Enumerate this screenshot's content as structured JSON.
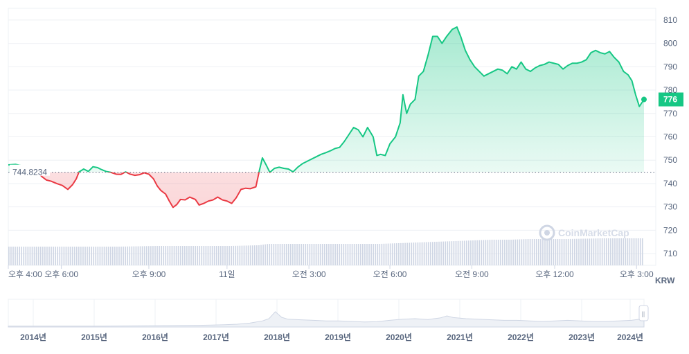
{
  "chart_data": {
    "type": "line",
    "baseline_value": 744.8234,
    "baseline_label": "744.8234",
    "last_value": 776,
    "last_label": "776",
    "unit_label": "KRW",
    "ylim": [
      705,
      815
    ],
    "y_ticks": [
      710,
      720,
      730,
      740,
      750,
      760,
      770,
      780,
      790,
      800,
      810
    ],
    "x_tick_labels": [
      "오후 4:00",
      "오후 6:00",
      "오후 9:00",
      "11일",
      "오전 3:00",
      "오전 6:00",
      "오전 9:00",
      "오후 12:00",
      "오후 3:00"
    ],
    "colors": {
      "up": "#16c784",
      "down": "#ea3943",
      "baseline": "#58667e",
      "volume": "#cfd6e4",
      "badge": "#16c784"
    },
    "price_series": [
      [
        0.0,
        748.0
      ],
      [
        0.8,
        748.2
      ],
      [
        1.5,
        747.6
      ],
      [
        2.3,
        746.5
      ],
      [
        3.0,
        745.5
      ],
      [
        3.6,
        743.0
      ],
      [
        4.1,
        741.5
      ],
      [
        4.6,
        741.0
      ],
      [
        5.2,
        740.0
      ],
      [
        5.8,
        739.2
      ],
      [
        6.4,
        737.5
      ],
      [
        6.9,
        739.5
      ],
      [
        7.3,
        742.0
      ],
      [
        7.6,
        745.0
      ],
      [
        8.1,
        746.2
      ],
      [
        8.6,
        745.2
      ],
      [
        9.1,
        747.2
      ],
      [
        9.6,
        746.8
      ],
      [
        10.0,
        746.0
      ],
      [
        10.5,
        745.2
      ],
      [
        11.0,
        744.8
      ],
      [
        11.6,
        744.0
      ],
      [
        12.1,
        743.9
      ],
      [
        12.6,
        745.0
      ],
      [
        13.1,
        744.0
      ],
      [
        13.6,
        743.5
      ],
      [
        14.1,
        743.8
      ],
      [
        14.6,
        744.6
      ],
      [
        15.1,
        744.0
      ],
      [
        15.6,
        742.0
      ],
      [
        16.0,
        739.0
      ],
      [
        16.4,
        737.0
      ],
      [
        16.9,
        735.5
      ],
      [
        17.3,
        732.5
      ],
      [
        17.7,
        729.8
      ],
      [
        18.1,
        731.0
      ],
      [
        18.5,
        733.2
      ],
      [
        19.0,
        733.0
      ],
      [
        19.5,
        734.2
      ],
      [
        20.1,
        733.2
      ],
      [
        20.5,
        730.8
      ],
      [
        21.0,
        731.5
      ],
      [
        21.5,
        732.5
      ],
      [
        22.0,
        733.0
      ],
      [
        22.5,
        734.2
      ],
      [
        23.0,
        733.0
      ],
      [
        23.5,
        732.5
      ],
      [
        24.0,
        731.5
      ],
      [
        24.5,
        734.0
      ],
      [
        25.0,
        737.5
      ],
      [
        25.5,
        738.0
      ],
      [
        26.0,
        737.8
      ],
      [
        26.6,
        738.6
      ],
      [
        27.0,
        746.0
      ],
      [
        27.3,
        751.0
      ],
      [
        27.7,
        748.0
      ],
      [
        28.1,
        744.8
      ],
      [
        28.6,
        746.5
      ],
      [
        29.1,
        747.0
      ],
      [
        29.6,
        746.5
      ],
      [
        30.1,
        746.2
      ],
      [
        30.6,
        745.0
      ],
      [
        31.1,
        747.0
      ],
      [
        31.6,
        748.5
      ],
      [
        32.1,
        749.5
      ],
      [
        32.6,
        750.5
      ],
      [
        33.1,
        751.5
      ],
      [
        33.6,
        752.5
      ],
      [
        34.1,
        753.2
      ],
      [
        34.6,
        754.0
      ],
      [
        35.1,
        755.0
      ],
      [
        35.6,
        755.5
      ],
      [
        36.1,
        758.0
      ],
      [
        36.6,
        761.0
      ],
      [
        37.1,
        764.0
      ],
      [
        37.6,
        763.0
      ],
      [
        38.1,
        760.0
      ],
      [
        38.6,
        764.0
      ],
      [
        39.2,
        760.0
      ],
      [
        39.6,
        752.0
      ],
      [
        40.0,
        752.5
      ],
      [
        40.5,
        752.0
      ],
      [
        41.0,
        757.0
      ],
      [
        41.6,
        760.0
      ],
      [
        42.1,
        766.0
      ],
      [
        42.4,
        778.0
      ],
      [
        42.8,
        770.0
      ],
      [
        43.2,
        774.0
      ],
      [
        43.7,
        776.0
      ],
      [
        44.1,
        786.0
      ],
      [
        44.6,
        788.0
      ],
      [
        45.1,
        795.0
      ],
      [
        45.6,
        803.0
      ],
      [
        46.1,
        803.0
      ],
      [
        46.6,
        800.0
      ],
      [
        47.1,
        803.0
      ],
      [
        47.7,
        806.0
      ],
      [
        48.2,
        807.0
      ],
      [
        48.6,
        803.0
      ],
      [
        49.1,
        797.0
      ],
      [
        49.6,
        793.0
      ],
      [
        50.1,
        790.0
      ],
      [
        50.6,
        788.0
      ],
      [
        51.1,
        786.0
      ],
      [
        51.6,
        787.0
      ],
      [
        52.1,
        788.0
      ],
      [
        52.6,
        789.0
      ],
      [
        53.1,
        788.5
      ],
      [
        53.6,
        787.0
      ],
      [
        54.1,
        790.0
      ],
      [
        54.6,
        789.0
      ],
      [
        55.1,
        792.0
      ],
      [
        55.6,
        789.0
      ],
      [
        56.1,
        788.0
      ],
      [
        56.6,
        789.5
      ],
      [
        57.1,
        790.5
      ],
      [
        57.6,
        791.0
      ],
      [
        58.1,
        792.0
      ],
      [
        58.6,
        791.5
      ],
      [
        59.1,
        791.0
      ],
      [
        59.6,
        789.0
      ],
      [
        60.1,
        790.5
      ],
      [
        60.6,
        791.5
      ],
      [
        61.1,
        791.5
      ],
      [
        61.6,
        792.0
      ],
      [
        62.1,
        793.0
      ],
      [
        62.6,
        796.0
      ],
      [
        63.1,
        797.0
      ],
      [
        63.6,
        796.0
      ],
      [
        64.1,
        795.5
      ],
      [
        64.6,
        796.5
      ],
      [
        65.1,
        794.0
      ],
      [
        65.6,
        792.0
      ],
      [
        66.1,
        788.0
      ],
      [
        66.6,
        786.5
      ],
      [
        67.0,
        784.0
      ],
      [
        67.4,
        778.0
      ],
      [
        67.8,
        773.0
      ],
      [
        68.3,
        776.0
      ]
    ],
    "volume": [
      [
        0,
        0.27
      ],
      [
        4,
        0.27
      ],
      [
        8,
        0.27
      ],
      [
        12,
        0.27
      ],
      [
        16,
        0.28
      ],
      [
        20,
        0.28
      ],
      [
        24,
        0.28
      ],
      [
        27,
        0.29
      ],
      [
        28,
        0.31
      ],
      [
        32,
        0.31
      ],
      [
        36,
        0.31
      ],
      [
        40,
        0.31
      ],
      [
        44,
        0.33
      ],
      [
        46,
        0.34
      ],
      [
        48,
        0.35
      ],
      [
        50,
        0.36
      ],
      [
        52,
        0.37
      ],
      [
        54,
        0.37
      ],
      [
        56,
        0.38
      ],
      [
        60,
        0.38
      ],
      [
        64,
        0.39
      ],
      [
        68.3,
        0.39
      ]
    ],
    "navigator": {
      "year_labels": [
        "2014년",
        "2015년",
        "2016년",
        "2017년",
        "2018년",
        "2019년",
        "2020년",
        "2021년",
        "2022년",
        "2023년",
        "2024년"
      ],
      "profile": [
        [
          0,
          0.03
        ],
        [
          5,
          0.03
        ],
        [
          10,
          0.03
        ],
        [
          15,
          0.03
        ],
        [
          20,
          0.04
        ],
        [
          25,
          0.05
        ],
        [
          30,
          0.06
        ],
        [
          32,
          0.07
        ],
        [
          34,
          0.08
        ],
        [
          36,
          0.1
        ],
        [
          38,
          0.14
        ],
        [
          40,
          0.22
        ],
        [
          41,
          0.3
        ],
        [
          42,
          0.55
        ],
        [
          43,
          0.35
        ],
        [
          44,
          0.28
        ],
        [
          46,
          0.26
        ],
        [
          48,
          0.24
        ],
        [
          50,
          0.22
        ],
        [
          52,
          0.22
        ],
        [
          54,
          0.2
        ],
        [
          56,
          0.18
        ],
        [
          58,
          0.19
        ],
        [
          60,
          0.24
        ],
        [
          62,
          0.28
        ],
        [
          64,
          0.3
        ],
        [
          66,
          0.27
        ],
        [
          67,
          0.3
        ],
        [
          68,
          0.33
        ],
        [
          69,
          0.4
        ],
        [
          70,
          0.34
        ],
        [
          72,
          0.3
        ],
        [
          74,
          0.28
        ],
        [
          76,
          0.26
        ],
        [
          78,
          0.24
        ],
        [
          80,
          0.24
        ],
        [
          82,
          0.22
        ],
        [
          84,
          0.2
        ],
        [
          86,
          0.22
        ],
        [
          88,
          0.24
        ],
        [
          90,
          0.22
        ],
        [
          92,
          0.2
        ],
        [
          94,
          0.2
        ],
        [
          96,
          0.22
        ],
        [
          98,
          0.24
        ],
        [
          100,
          0.3
        ]
      ]
    }
  },
  "watermark": "CoinMarketCap",
  "navigator_handle": "||"
}
